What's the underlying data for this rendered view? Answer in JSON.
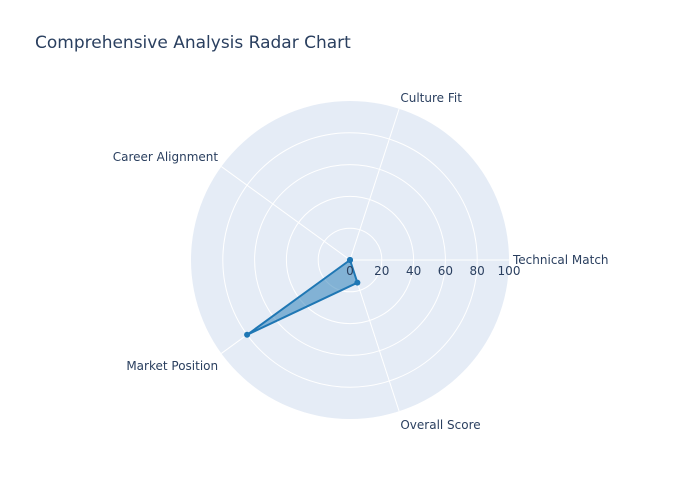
{
  "chart_data": {
    "type": "radar",
    "title": "Comprehensive Analysis Radar Chart",
    "categories": [
      "Technical Match",
      "Culture Fit",
      "Career Alignment",
      "Market Position",
      "Overall Score"
    ],
    "values": [
      0,
      0,
      0,
      80,
      15
    ],
    "radial_range": [
      0,
      100
    ],
    "radial_ticks": [
      "0",
      "20",
      "40",
      "60",
      "80",
      "100"
    ],
    "grid": true,
    "colors": {
      "plot_background": "#e5ecf6",
      "grid": "#ffffff",
      "line": "#1f77b4",
      "fill": "rgba(31,119,180,0.5)",
      "text": "#2a3f5f"
    }
  }
}
